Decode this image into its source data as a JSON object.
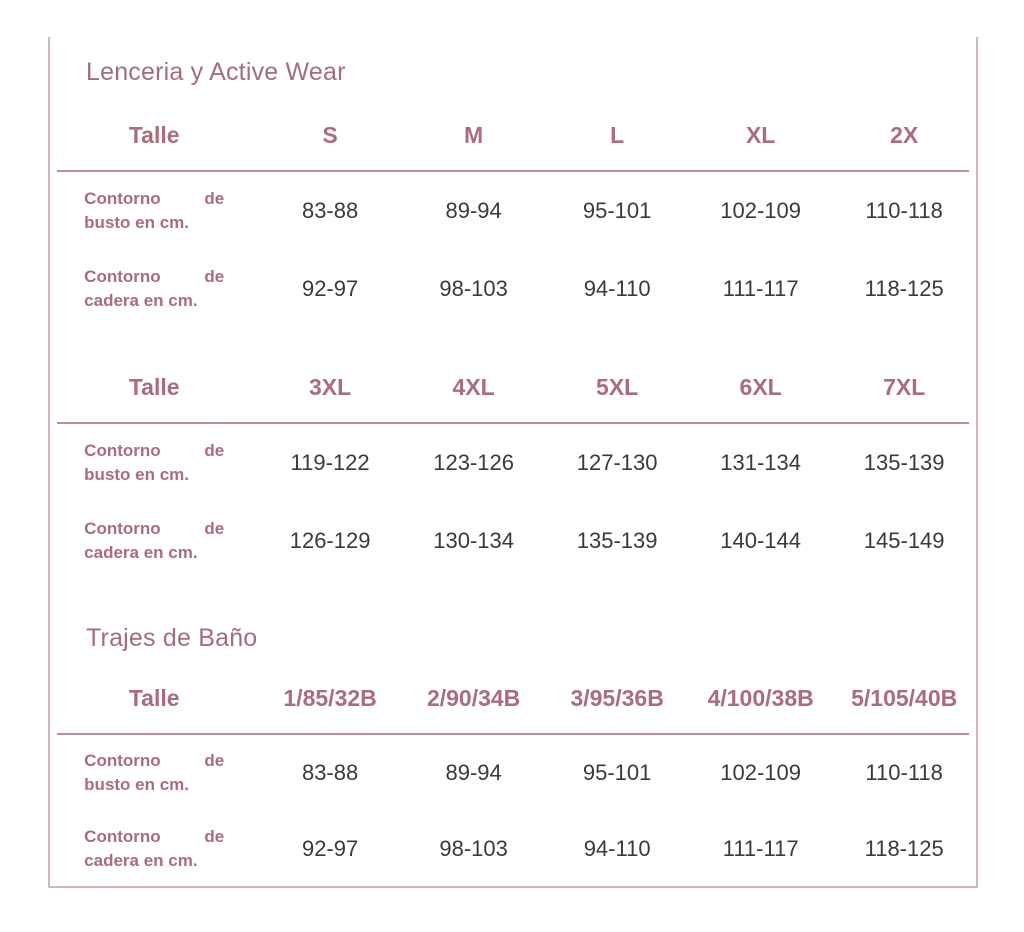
{
  "theme": {
    "accent_title": "#a26e7c",
    "accent_header": "#ab6c7d",
    "rule_color": "#bb8f9a",
    "frame_border": "#cdb9bb",
    "value_text": "#3a3a3a"
  },
  "sections": [
    {
      "title": "Lenceria y Active Wear",
      "tables": [
        {
          "header": [
            "Talle",
            "S",
            "M",
            "L",
            "XL",
            "2X"
          ],
          "rows": [
            {
              "label": "Contorno de busto en cm.",
              "values": [
                "83-88",
                "89-94",
                "95-101",
                "102-109",
                "110-118"
              ]
            },
            {
              "label": "Contorno de cadera en cm.",
              "values": [
                "92-97",
                "98-103",
                "94-110",
                "111-117",
                "118-125"
              ]
            }
          ]
        },
        {
          "header": [
            "Talle",
            "3XL",
            "4XL",
            "5XL",
            "6XL",
            "7XL"
          ],
          "rows": [
            {
              "label": "Contorno de busto en cm.",
              "values": [
                "119-122",
                "123-126",
                "127-130",
                "131-134",
                "135-139"
              ]
            },
            {
              "label": "Contorno de cadera en cm.",
              "values": [
                "126-129",
                "130-134",
                "135-139",
                "140-144",
                "145-149"
              ]
            }
          ]
        }
      ]
    },
    {
      "title": "Trajes de Baño",
      "tables": [
        {
          "header": [
            "Talle",
            "1/85/32B",
            "2/90/34B",
            "3/95/36B",
            "4/100/38B",
            "5/105/40B"
          ],
          "rows": [
            {
              "label": "Contorno de busto en cm.",
              "values": [
                "83-88",
                "89-94",
                "95-101",
                "102-109",
                "110-118"
              ]
            },
            {
              "label": "Contorno de cadera en cm.",
              "values": [
                "92-97",
                "98-103",
                "94-110",
                "111-117",
                "118-125"
              ]
            }
          ]
        }
      ]
    }
  ]
}
